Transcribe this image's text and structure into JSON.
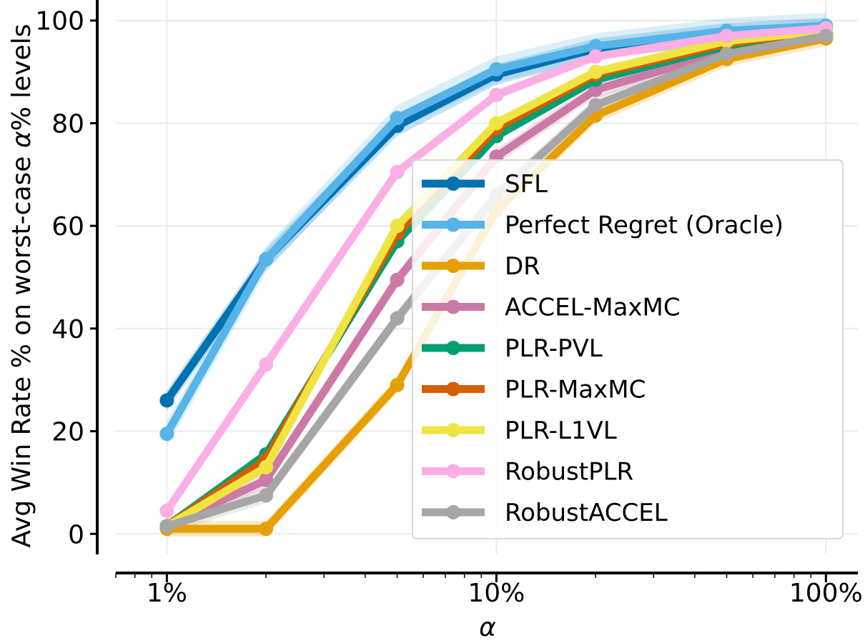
{
  "chart_data": {
    "type": "line",
    "xscale": "log",
    "x": [
      1,
      2,
      5,
      10,
      20,
      50,
      100
    ],
    "xticks": [
      {
        "value": 1,
        "label": "1%"
      },
      {
        "value": 10,
        "label": "10%"
      },
      {
        "value": 100,
        "label": "100%"
      }
    ],
    "yticks": [
      0,
      20,
      40,
      60,
      80,
      100
    ],
    "xlim": [
      0.7,
      125
    ],
    "ylim": [
      -4,
      104
    ],
    "xlabel": "α",
    "ylabel_parts": [
      "Avg Win Rate % on worst-case ",
      "α",
      "% levels"
    ],
    "grid": true,
    "legend_position": "lower-right",
    "series": [
      {
        "name": "SFL",
        "color": "#0072b2",
        "values": [
          26,
          53.5,
          79.5,
          89.5,
          94.5,
          97.5,
          98.5
        ],
        "band": 2
      },
      {
        "name": "Perfect Regret (Oracle)",
        "color": "#56b4e9",
        "values": [
          19.5,
          53.5,
          81,
          90.5,
          95,
          98,
          99
        ],
        "band": 2.5
      },
      {
        "name": "DR",
        "color": "#e69f00",
        "values": [
          1,
          1,
          29,
          63,
          81.5,
          92.5,
          96.5
        ],
        "band": 1.5
      },
      {
        "name": "ACCEL-MaxMC",
        "color": "#cc79a7",
        "values": [
          1.5,
          10.5,
          49.5,
          73.5,
          86.5,
          94,
          97.5
        ],
        "band": 1.5
      },
      {
        "name": "PLR-PVL",
        "color": "#009e73",
        "values": [
          1.5,
          15.5,
          57,
          77.5,
          88.5,
          95,
          97.5
        ],
        "band": 1
      },
      {
        "name": "PLR-MaxMC",
        "color": "#d55e00",
        "values": [
          1.5,
          14.5,
          58.5,
          79,
          89.5,
          95.5,
          98
        ],
        "band": 1
      },
      {
        "name": "PLR-L1VL",
        "color": "#f0e442",
        "values": [
          1.5,
          13,
          60,
          80,
          90,
          96,
          98
        ],
        "band": 1
      },
      {
        "name": "RobustPLR",
        "color": "#fbafe4",
        "values": [
          4.5,
          33,
          70.5,
          85.5,
          93,
          97,
          98.5
        ],
        "band": 1
      },
      {
        "name": "RobustACCEL",
        "color": "#a6a6a6",
        "values": [
          1.5,
          7.5,
          42,
          66,
          83.5,
          93.5,
          97
        ],
        "band": 1.5
      }
    ]
  }
}
